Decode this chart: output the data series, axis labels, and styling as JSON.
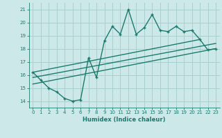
{
  "title": "",
  "xlabel": "Humidex (Indice chaleur)",
  "ylabel": "",
  "bg_color": "#cce8e8",
  "grid_color": "#aacfcf",
  "line_color": "#1a7a6e",
  "xlim": [
    -0.5,
    23.5
  ],
  "ylim": [
    13.5,
    21.5
  ],
  "xticks": [
    0,
    1,
    2,
    3,
    4,
    5,
    6,
    7,
    8,
    9,
    10,
    11,
    12,
    13,
    14,
    15,
    16,
    17,
    18,
    19,
    20,
    21,
    22,
    23
  ],
  "yticks": [
    14,
    15,
    16,
    17,
    18,
    19,
    20,
    21
  ],
  "main_x": [
    0,
    1,
    2,
    3,
    4,
    5,
    6,
    7,
    8,
    9,
    10,
    11,
    12,
    13,
    14,
    15,
    16,
    17,
    18,
    19,
    20,
    21,
    22,
    23
  ],
  "main_y": [
    16.2,
    15.6,
    15.0,
    14.7,
    14.2,
    14.0,
    14.1,
    17.3,
    15.8,
    18.6,
    19.7,
    19.1,
    21.0,
    19.1,
    19.6,
    20.6,
    19.4,
    19.3,
    19.7,
    19.3,
    19.4,
    18.7,
    17.9,
    18.0
  ],
  "upper_line_x": [
    0,
    21
  ],
  "upper_line_y": [
    16.2,
    18.7
  ],
  "lower_line_x": [
    0,
    23
  ],
  "lower_line_y": [
    15.3,
    18.0
  ],
  "mid_line_x": [
    0,
    23
  ],
  "mid_line_y": [
    15.8,
    18.4
  ]
}
